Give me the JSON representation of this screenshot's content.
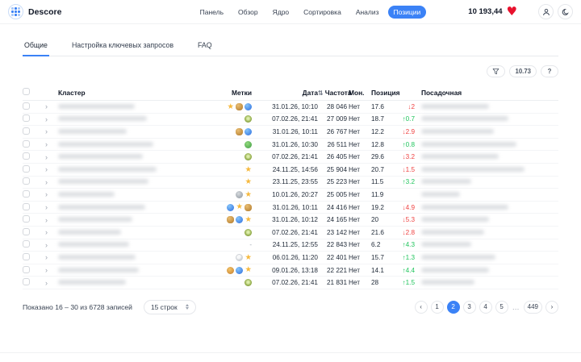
{
  "topbar": {
    "brand": "Descore",
    "nav": [
      {
        "label": "Панель",
        "active": false
      },
      {
        "label": "Обзор",
        "active": false
      },
      {
        "label": "Ядро",
        "active": false
      },
      {
        "label": "Сортировка",
        "active": false
      },
      {
        "label": "Анализ",
        "active": false
      },
      {
        "label": "Позиции",
        "active": true
      }
    ],
    "balance": "10 193,44",
    "heart_icon": "heart",
    "profile_icon": "person",
    "theme_icon": "moon"
  },
  "tabs": [
    {
      "label": "Общие",
      "active": true
    },
    {
      "label": "Настройка ключевых запросов",
      "active": false
    },
    {
      "label": "FAQ",
      "active": false
    }
  ],
  "toolbar": {
    "filter_icon": "funnel",
    "metric_label": "10.73",
    "help_label": "?"
  },
  "table": {
    "headers": {
      "cluster": "Кластер",
      "marks": "Метки",
      "date": "Дата",
      "freq": "Частота",
      "freq_sort_icon": "sort",
      "mon": "Мон.",
      "pos": "Позиция",
      "landing": "Посадочная"
    },
    "rows": [
      {
        "marks": [
          "star",
          "honey",
          "blue"
        ],
        "date": "31.01.26, 10:10",
        "freq": "28 046",
        "mon": "Нет",
        "pos": "17.6",
        "delta": "↓2",
        "dir": "down",
        "cluster_blur_w": 95,
        "landing_blur_w": 84
      },
      {
        "marks": [
          "kiwi"
        ],
        "date": "07.02.26, 21:41",
        "freq": "27 009",
        "mon": "Нет",
        "pos": "18.7",
        "delta": "↑0.7",
        "dir": "up",
        "cluster_blur_w": 110,
        "landing_blur_w": 108
      },
      {
        "marks": [
          "honey",
          "blue"
        ],
        "date": "31.01.26, 10:11",
        "freq": "26 767",
        "mon": "Нет",
        "pos": "12.2",
        "delta": "↓2.9",
        "dir": "down",
        "cluster_blur_w": 85,
        "landing_blur_w": 90
      },
      {
        "marks": [
          "frog"
        ],
        "date": "31.01.26, 10:30",
        "freq": "26 511",
        "mon": "Нет",
        "pos": "12.8",
        "delta": "↑0.8",
        "dir": "up",
        "cluster_blur_w": 118,
        "landing_blur_w": 118
      },
      {
        "marks": [
          "kiwi"
        ],
        "date": "07.02.26, 21:41",
        "freq": "26 405",
        "mon": "Нет",
        "pos": "29.6",
        "delta": "↓3.2",
        "dir": "down",
        "cluster_blur_w": 105,
        "landing_blur_w": 96
      },
      {
        "marks": [
          "star"
        ],
        "date": "24.11.25, 14:56",
        "freq": "25 904",
        "mon": "Нет",
        "pos": "20.7",
        "delta": "↓1.5",
        "dir": "down",
        "cluster_blur_w": 122,
        "landing_blur_w": 128
      },
      {
        "marks": [
          "star"
        ],
        "date": "23.11.25, 23:55",
        "freq": "25 223",
        "mon": "Нет",
        "pos": "11.5",
        "delta": "↑3.2",
        "dir": "up",
        "cluster_blur_w": 112,
        "landing_blur_w": 62
      },
      {
        "marks": [
          "koala",
          "star"
        ],
        "date": "10.01.26, 20:27",
        "freq": "25 005",
        "mon": "Нет",
        "pos": "11.9",
        "delta": "",
        "dir": "none",
        "cluster_blur_w": 70,
        "landing_blur_w": 48
      },
      {
        "marks": [
          "blue",
          "star",
          "honey"
        ],
        "date": "31.01.26, 10:11",
        "freq": "24 416",
        "mon": "Нет",
        "pos": "19.2",
        "delta": "↓4.9",
        "dir": "down",
        "cluster_blur_w": 108,
        "landing_blur_w": 108
      },
      {
        "marks": [
          "honey",
          "blue",
          "star"
        ],
        "date": "31.01.26, 10:12",
        "freq": "24 165",
        "mon": "Нет",
        "pos": "20",
        "delta": "↓5.3",
        "dir": "down",
        "cluster_blur_w": 92,
        "landing_blur_w": 84
      },
      {
        "marks": [
          "kiwi"
        ],
        "date": "07.02.26, 21:41",
        "freq": "23 142",
        "mon": "Нет",
        "pos": "21.6",
        "delta": "↓2.8",
        "dir": "down",
        "cluster_blur_w": 78,
        "landing_blur_w": 78
      },
      {
        "marks": [
          "dash"
        ],
        "date": "24.11.25, 12:55",
        "freq": "22 843",
        "mon": "Нет",
        "pos": "6.2",
        "delta": "↑4.3",
        "dir": "up",
        "cluster_blur_w": 88,
        "landing_blur_w": 62
      },
      {
        "marks": [
          "panda",
          "star"
        ],
        "date": "06.01.26, 11:20",
        "freq": "22 401",
        "mon": "Нет",
        "pos": "15.7",
        "delta": "↑1.3",
        "dir": "up",
        "cluster_blur_w": 96,
        "landing_blur_w": 92
      },
      {
        "marks": [
          "monkey",
          "blue",
          "star"
        ],
        "date": "09.01.26, 13:18",
        "freq": "22 221",
        "mon": "Нет",
        "pos": "14.1",
        "delta": "↑4.4",
        "dir": "up",
        "cluster_blur_w": 100,
        "landing_blur_w": 84
      },
      {
        "marks": [
          "kiwi"
        ],
        "date": "07.02.26, 21:41",
        "freq": "21 831",
        "mon": "Нет",
        "pos": "28",
        "delta": "↑1.5",
        "dir": "up",
        "cluster_blur_w": 84,
        "landing_blur_w": 66
      }
    ]
  },
  "footer": {
    "summary": "Показано 16 – 30 из 6728 записей",
    "rows_per_page": "15 строк",
    "prev_label": "‹",
    "next_label": "›",
    "pages": [
      "1",
      "2",
      "3",
      "4",
      "5"
    ],
    "active_page": "2",
    "ellipsis": "…",
    "last_page": "449"
  },
  "colors": {
    "accent": "#3b82f6",
    "delta_up": "#22c55e",
    "delta_down": "#ef4444",
    "heart": "#e8112d"
  }
}
